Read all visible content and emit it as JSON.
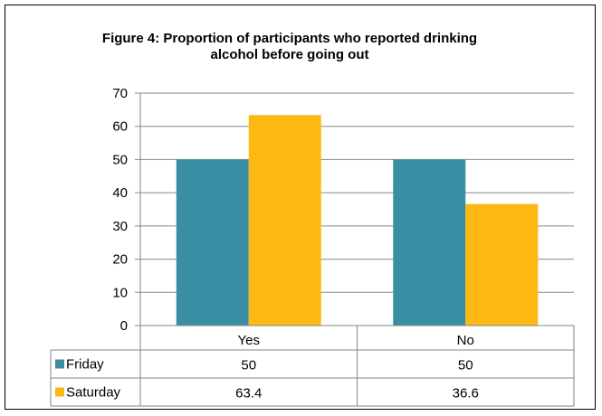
{
  "chart_data": {
    "type": "bar",
    "title": "Figure 4: Proportion of participants who reported drinking alcohol before going out",
    "categories": [
      "Yes",
      "No"
    ],
    "series": [
      {
        "name": "Friday",
        "values": [
          50,
          50
        ],
        "display": [
          "50",
          "50"
        ],
        "color": "#3A8EA3"
      },
      {
        "name": "Saturday",
        "values": [
          63.4,
          36.6
        ],
        "display": [
          "63.4",
          "36.6"
        ],
        "color": "#FDB813"
      }
    ],
    "ylim": [
      0,
      70
    ],
    "yticks": [
      0,
      10,
      20,
      30,
      40,
      50,
      60,
      70
    ],
    "grid": true,
    "legend": "data-table-left",
    "xlabel": "",
    "ylabel": ""
  }
}
